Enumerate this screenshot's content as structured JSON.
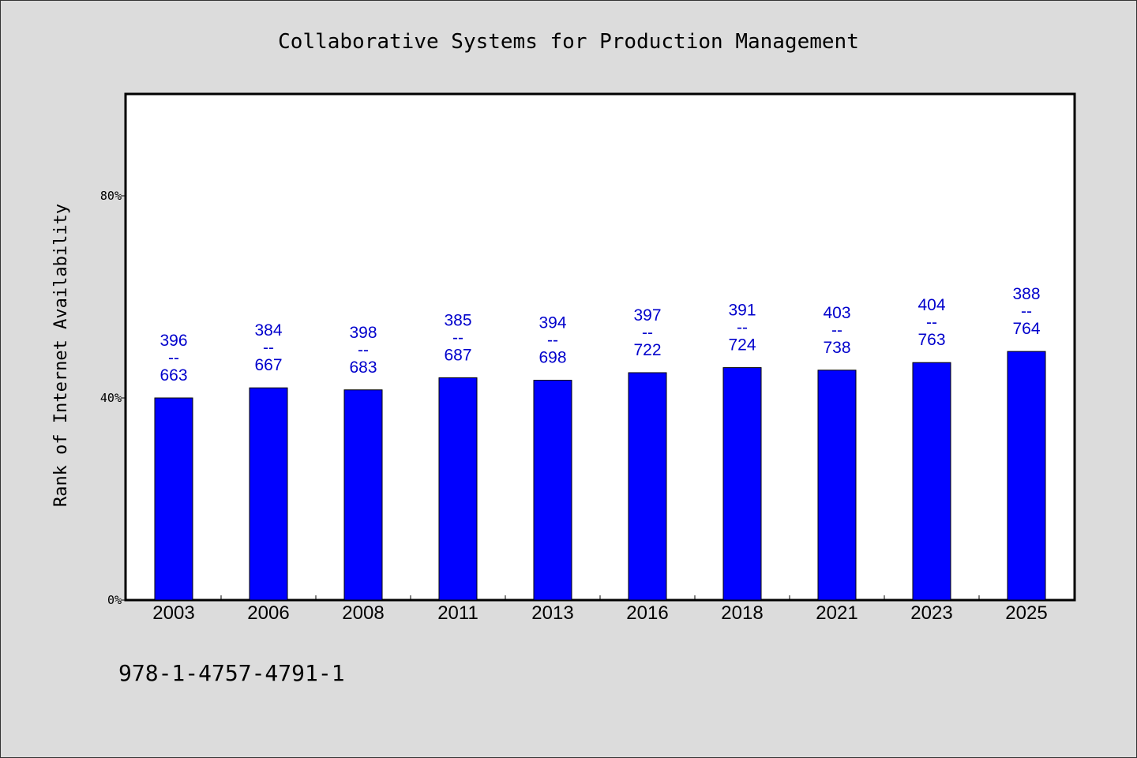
{
  "footer": {
    "isbn": "978-1-4757-4791-1"
  },
  "colors": {
    "background": "#dcdcdc",
    "plot_area": "#ffffff",
    "bar": "#0000ff",
    "data_label": "#0000cc"
  },
  "chart_data": {
    "type": "bar",
    "title": "Collaborative Systems for Production Management",
    "xlabel": "",
    "ylabel": "Rank of Internet Availability",
    "categories": [
      "2003",
      "2006",
      "2008",
      "2011",
      "2013",
      "2016",
      "2018",
      "2021",
      "2023",
      "2025"
    ],
    "values": [
      40,
      42,
      41.6,
      44,
      43.5,
      45,
      46,
      45.5,
      47,
      49.2
    ],
    "value_unit": "%",
    "ylim": [
      0,
      100
    ],
    "yticks": [
      0,
      40,
      80
    ],
    "ytick_labels": [
      "0%",
      "40%",
      "80%"
    ],
    "data_labels": [
      [
        "396",
        "--",
        "663"
      ],
      [
        "384",
        "--",
        "667"
      ],
      [
        "398",
        "--",
        "683"
      ],
      [
        "385",
        "--",
        "687"
      ],
      [
        "394",
        "--",
        "698"
      ],
      [
        "397",
        "--",
        "722"
      ],
      [
        "391",
        "--",
        "724"
      ],
      [
        "403",
        "--",
        "738"
      ],
      [
        "404",
        "--",
        "763"
      ],
      [
        "388",
        "--",
        "764"
      ]
    ],
    "grid": false,
    "legend": "none"
  }
}
